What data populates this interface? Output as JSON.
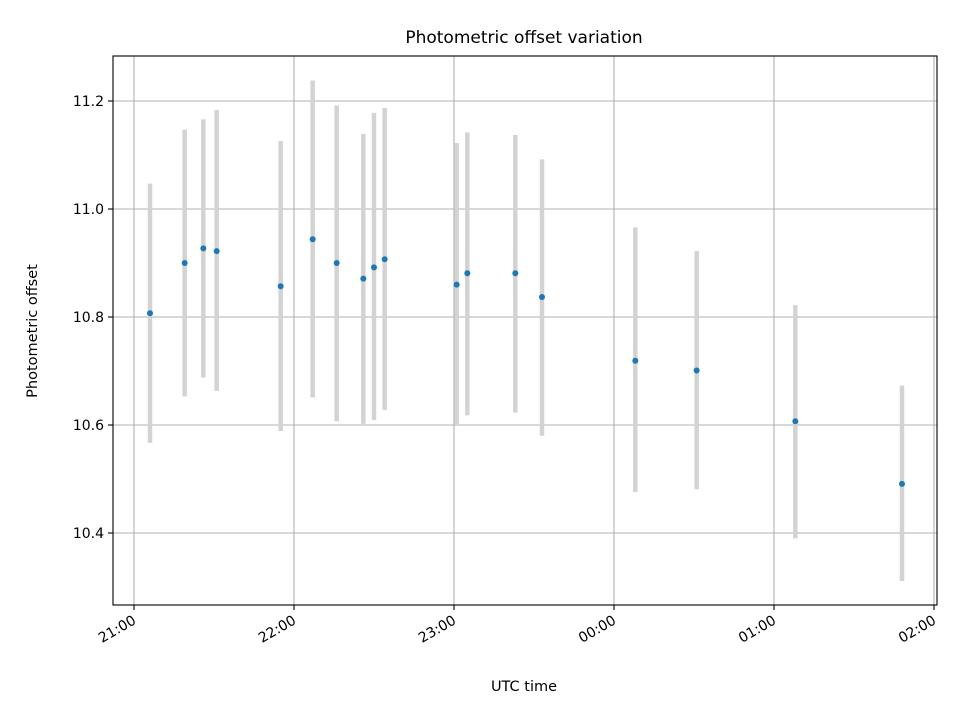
{
  "chart_data": {
    "type": "scatter",
    "title": "Photometric offset variation",
    "xlabel": "UTC time",
    "ylabel": "Photometric offset",
    "x_axis": {
      "type": "time",
      "range": [
        "21:00",
        "02:00"
      ],
      "ticks": [
        "21:00",
        "22:00",
        "23:00",
        "00:00",
        "01:00",
        "02:00"
      ],
      "tick_rotation_deg": 30
    },
    "y_axis": {
      "range": [
        10.26,
        11.285
      ],
      "ticks": [
        "10.4",
        "10.6",
        "10.8",
        "11.0",
        "11.2"
      ]
    },
    "grid": true,
    "marker_color": "#1f77b4",
    "errorbar_color": "#d3d3d3",
    "points": [
      {
        "t": "21:06",
        "y": 10.807,
        "lo": 10.567,
        "hi": 11.047
      },
      {
        "t": "21:19",
        "y": 10.9,
        "lo": 10.653,
        "hi": 11.147
      },
      {
        "t": "21:26",
        "y": 10.927,
        "lo": 10.688,
        "hi": 11.166
      },
      {
        "t": "21:31",
        "y": 10.922,
        "lo": 10.663,
        "hi": 11.183
      },
      {
        "t": "21:55",
        "y": 10.857,
        "lo": 10.589,
        "hi": 11.126
      },
      {
        "t": "22:07",
        "y": 10.944,
        "lo": 10.651,
        "hi": 11.238
      },
      {
        "t": "22:16",
        "y": 10.9,
        "lo": 10.607,
        "hi": 11.192
      },
      {
        "t": "22:26",
        "y": 10.871,
        "lo": 10.602,
        "hi": 11.139
      },
      {
        "t": "22:30",
        "y": 10.892,
        "lo": 10.609,
        "hi": 11.178
      },
      {
        "t": "22:34",
        "y": 10.907,
        "lo": 10.628,
        "hi": 11.187
      },
      {
        "t": "23:01",
        "y": 10.86,
        "lo": 10.6,
        "hi": 11.122
      },
      {
        "t": "23:05",
        "y": 10.881,
        "lo": 10.618,
        "hi": 11.142
      },
      {
        "t": "23:23",
        "y": 10.881,
        "lo": 10.623,
        "hi": 11.137
      },
      {
        "t": "23:33",
        "y": 10.837,
        "lo": 10.58,
        "hi": 11.092
      },
      {
        "t": "00:08",
        "y": 10.719,
        "lo": 10.476,
        "hi": 10.966
      },
      {
        "t": "00:31",
        "y": 10.701,
        "lo": 10.481,
        "hi": 10.922
      },
      {
        "t": "01:08",
        "y": 10.607,
        "lo": 10.39,
        "hi": 10.822
      },
      {
        "t": "01:48",
        "y": 10.491,
        "lo": 10.311,
        "hi": 10.673
      }
    ]
  }
}
